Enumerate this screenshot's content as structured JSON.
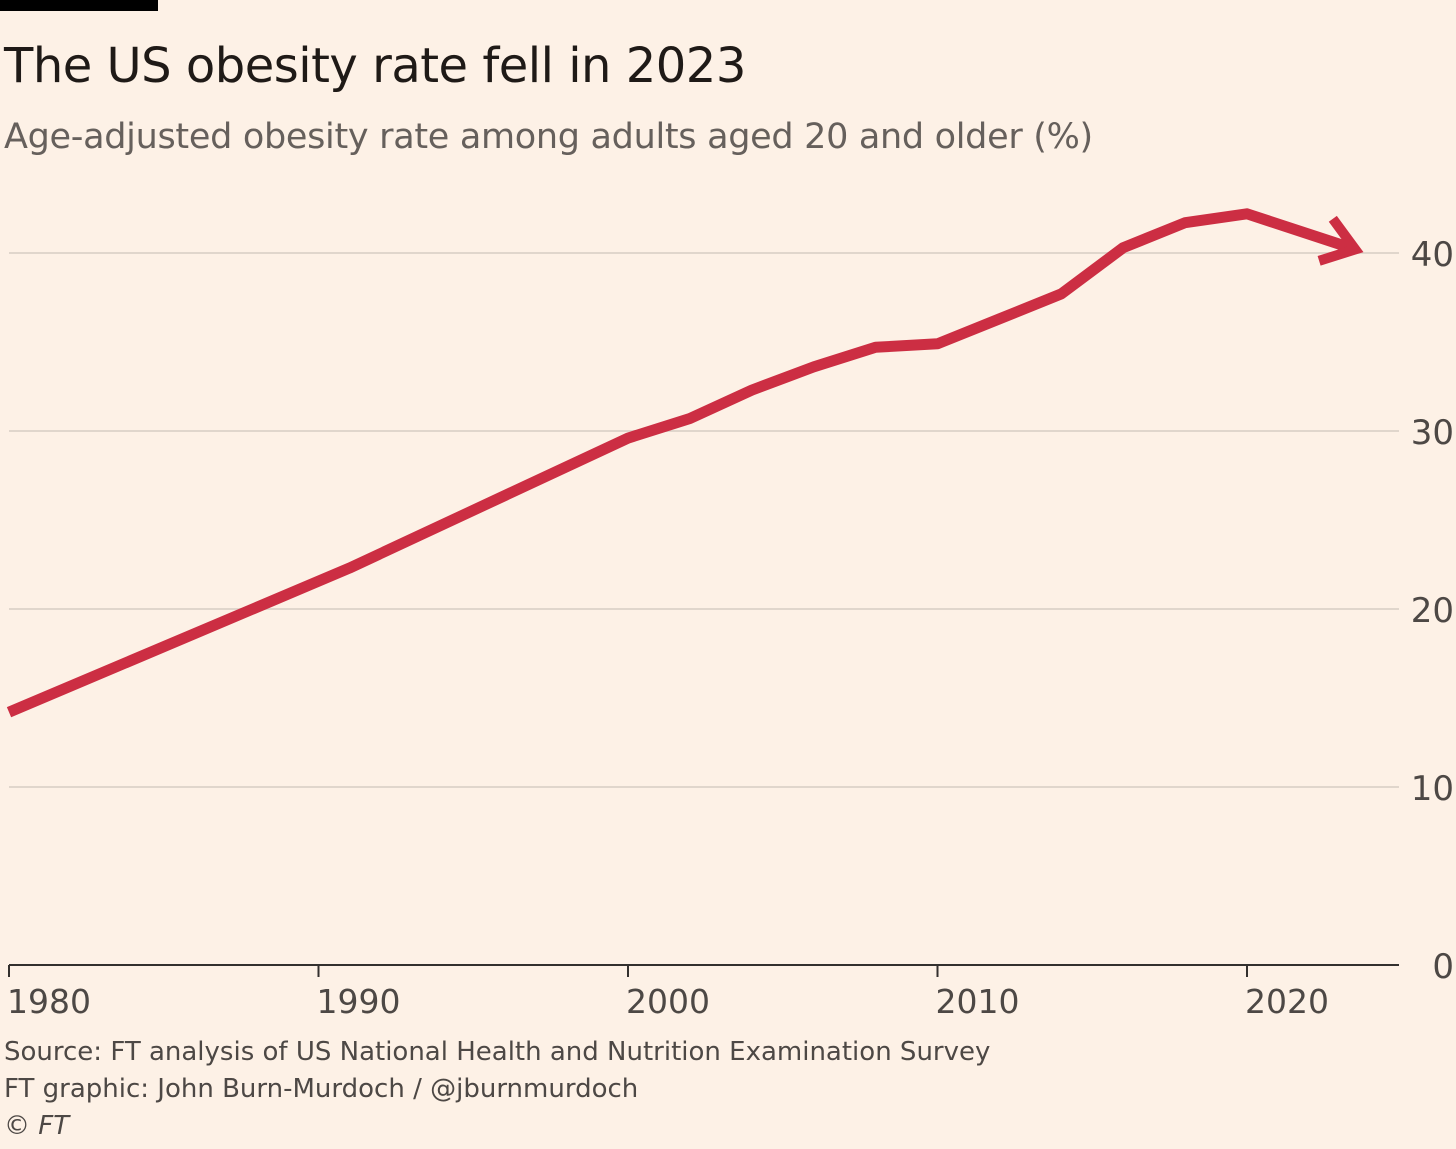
{
  "title": "The US obesity rate fell in 2023",
  "subtitle": "Age-adjusted obesity rate among adults aged 20 and older (%)",
  "source": "Source: FT analysis of US National Health and Nutrition Examination Survey",
  "credit": "FT graphic: John Burn-Murdoch / @jburnmurdoch",
  "copyright": "© FT",
  "colors": {
    "background": "#FDF1E6",
    "line": "#CC2E43",
    "grid": "#E0D6CC",
    "axis": "#33302E",
    "tick_text": "#4D4845"
  },
  "chart_data": {
    "type": "line",
    "title": "The US obesity rate fell in 2023",
    "subtitle": "Age-adjusted obesity rate among adults aged 20 and older (%)",
    "xlabel": "",
    "ylabel": "",
    "xlim": [
      1980,
      2024.5
    ],
    "ylim": [
      0,
      40
    ],
    "x_ticks": [
      1980,
      1990,
      2000,
      2010,
      2020
    ],
    "y_ticks": [
      0,
      10,
      20,
      30,
      40
    ],
    "y_axis_position": "right",
    "grid": true,
    "end_marker": "arrow",
    "series": [
      {
        "x": [
          1980,
          1991,
          2000,
          2002,
          2004,
          2006,
          2008,
          2010,
          2012,
          2014,
          2016,
          2018,
          2020,
          2023.5
        ],
        "values": [
          14.2,
          22.3,
          29.6,
          30.7,
          32.3,
          33.6,
          34.7,
          34.9,
          36.3,
          37.7,
          40.3,
          41.7,
          42.2,
          40.2
        ]
      }
    ]
  }
}
